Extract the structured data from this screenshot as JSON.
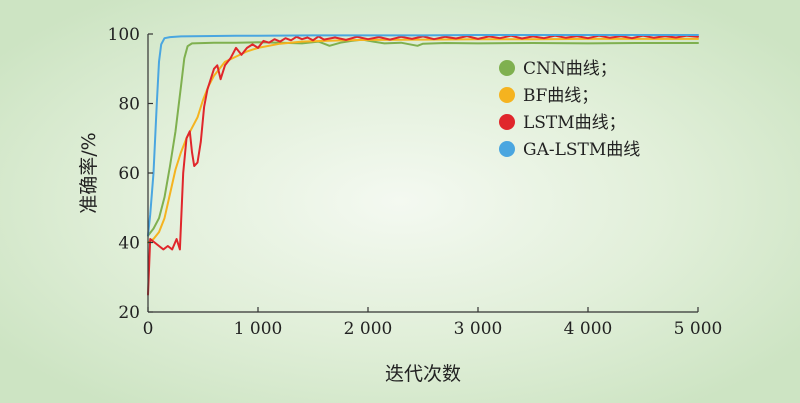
{
  "chart_data": {
    "type": "line",
    "title": "",
    "xlabel": "迭代次数",
    "ylabel": "准确率/%",
    "xlim": [
      0,
      5000
    ],
    "ylim": [
      20,
      100
    ],
    "x_ticks": [
      0,
      1000,
      2000,
      3000,
      4000,
      5000
    ],
    "x_tick_labels": [
      "0",
      "1 000",
      "2 000",
      "3 000",
      "4 000",
      "5 000"
    ],
    "y_ticks": [
      20,
      40,
      60,
      80,
      100
    ],
    "y_tick_labels": [
      "20",
      "40",
      "60",
      "80",
      "100"
    ],
    "grid": false,
    "legend_position": "top-right",
    "series": [
      {
        "name": "CNN曲线；",
        "color": "#7fb04f",
        "points": [
          [
            0,
            42
          ],
          [
            50,
            44
          ],
          [
            100,
            47
          ],
          [
            150,
            53
          ],
          [
            200,
            62
          ],
          [
            250,
            72
          ],
          [
            300,
            85
          ],
          [
            330,
            93
          ],
          [
            360,
            96.5
          ],
          [
            400,
            97.3
          ],
          [
            600,
            97.5
          ],
          [
            800,
            97.5
          ],
          [
            1000,
            97.6
          ],
          [
            1200,
            97.5
          ],
          [
            1400,
            97.3
          ],
          [
            1550,
            97.8
          ],
          [
            1650,
            96.6
          ],
          [
            1750,
            97.5
          ],
          [
            1850,
            98.0
          ],
          [
            1950,
            98.4
          ],
          [
            2050,
            97.8
          ],
          [
            2150,
            97.3
          ],
          [
            2300,
            97.5
          ],
          [
            2450,
            96.6
          ],
          [
            2500,
            97.2
          ],
          [
            2700,
            97.4
          ],
          [
            3000,
            97.3
          ],
          [
            3500,
            97.4
          ],
          [
            4000,
            97.3
          ],
          [
            4500,
            97.4
          ],
          [
            5000,
            97.4
          ]
        ]
      },
      {
        "name": "BF曲线；",
        "color": "#f5b31f",
        "points": [
          [
            0,
            40
          ],
          [
            50,
            41
          ],
          [
            100,
            43
          ],
          [
            150,
            47
          ],
          [
            200,
            54
          ],
          [
            250,
            61
          ],
          [
            300,
            66
          ],
          [
            350,
            70
          ],
          [
            400,
            73
          ],
          [
            450,
            76
          ],
          [
            500,
            81
          ],
          [
            550,
            85
          ],
          [
            600,
            88
          ],
          [
            650,
            90
          ],
          [
            700,
            92
          ],
          [
            800,
            93.5
          ],
          [
            900,
            95
          ],
          [
            1000,
            96
          ],
          [
            1200,
            97.2
          ],
          [
            1400,
            97.8
          ],
          [
            1600,
            98
          ],
          [
            1800,
            98.2
          ],
          [
            2000,
            98.3
          ],
          [
            2500,
            98.4
          ],
          [
            3000,
            98.5
          ],
          [
            3500,
            98.5
          ],
          [
            4000,
            98.6
          ],
          [
            4500,
            98.6
          ],
          [
            5000,
            98.6
          ]
        ]
      },
      {
        "name": "LSTM曲线；",
        "color": "#e0262b",
        "points": [
          [
            0,
            25
          ],
          [
            20,
            41
          ],
          [
            60,
            40
          ],
          [
            100,
            39
          ],
          [
            140,
            38
          ],
          [
            180,
            39
          ],
          [
            220,
            38
          ],
          [
            260,
            41
          ],
          [
            290,
            38
          ],
          [
            320,
            60
          ],
          [
            350,
            70
          ],
          [
            380,
            72
          ],
          [
            400,
            66
          ],
          [
            420,
            62
          ],
          [
            450,
            63
          ],
          [
            480,
            69
          ],
          [
            510,
            79
          ],
          [
            540,
            84
          ],
          [
            570,
            87
          ],
          [
            600,
            90
          ],
          [
            630,
            91
          ],
          [
            660,
            87
          ],
          [
            700,
            91
          ],
          [
            750,
            93
          ],
          [
            800,
            96
          ],
          [
            850,
            94
          ],
          [
            900,
            96
          ],
          [
            950,
            97
          ],
          [
            1000,
            96
          ],
          [
            1050,
            98
          ],
          [
            1100,
            97.5
          ],
          [
            1150,
            98.5
          ],
          [
            1200,
            97.8
          ],
          [
            1250,
            98.8
          ],
          [
            1300,
            98.2
          ],
          [
            1350,
            99.2
          ],
          [
            1400,
            98.5
          ],
          [
            1450,
            99.0
          ],
          [
            1500,
            98.2
          ],
          [
            1550,
            99.3
          ],
          [
            1600,
            98.4
          ],
          [
            1700,
            99.0
          ],
          [
            1800,
            98.3
          ],
          [
            1900,
            99.2
          ],
          [
            2000,
            98.5
          ],
          [
            2100,
            99.1
          ],
          [
            2200,
            98.4
          ],
          [
            2300,
            99.2
          ],
          [
            2400,
            98.6
          ],
          [
            2500,
            99.3
          ],
          [
            2600,
            98.5
          ],
          [
            2700,
            99.2
          ],
          [
            2800,
            98.7
          ],
          [
            2900,
            99.4
          ],
          [
            3000,
            98.6
          ],
          [
            3100,
            99.3
          ],
          [
            3200,
            98.8
          ],
          [
            3300,
            99.5
          ],
          [
            3400,
            98.7
          ],
          [
            3500,
            99.3
          ],
          [
            3600,
            98.8
          ],
          [
            3700,
            99.5
          ],
          [
            3800,
            98.9
          ],
          [
            3900,
            99.4
          ],
          [
            4000,
            98.8
          ],
          [
            4100,
            99.5
          ],
          [
            4200,
            98.9
          ],
          [
            4300,
            99.4
          ],
          [
            4400,
            98.8
          ],
          [
            4500,
            99.5
          ],
          [
            4600,
            98.9
          ],
          [
            4700,
            99.4
          ],
          [
            4800,
            99.0
          ],
          [
            4900,
            99.5
          ],
          [
            5000,
            99.2
          ]
        ]
      },
      {
        "name": "GA-LSTM曲线",
        "color": "#4aa6e0",
        "points": [
          [
            0,
            42
          ],
          [
            20,
            48
          ],
          [
            50,
            60
          ],
          [
            80,
            80
          ],
          [
            100,
            92
          ],
          [
            120,
            97
          ],
          [
            150,
            98.8
          ],
          [
            200,
            99.1
          ],
          [
            300,
            99.3
          ],
          [
            500,
            99.4
          ],
          [
            800,
            99.5
          ],
          [
            1000,
            99.5
          ],
          [
            1500,
            99.6
          ],
          [
            2000,
            99.6
          ],
          [
            2500,
            99.6
          ],
          [
            3000,
            99.7
          ],
          [
            3500,
            99.7
          ],
          [
            4000,
            99.7
          ],
          [
            4500,
            99.7
          ],
          [
            5000,
            99.7
          ]
        ]
      }
    ]
  }
}
